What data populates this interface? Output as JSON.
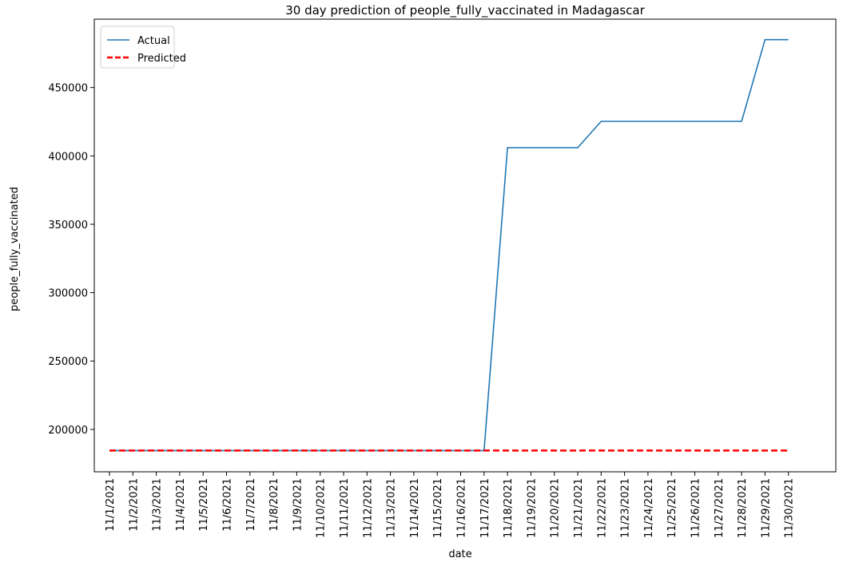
{
  "chart_data": {
    "type": "line",
    "title": "30 day prediction of people_fully_vaccinated in Madagascar",
    "xlabel": "date",
    "ylabel": "people_fully_vaccinated",
    "categories": [
      "11/1/2021",
      "11/2/2021",
      "11/3/2021",
      "11/4/2021",
      "11/5/2021",
      "11/6/2021",
      "11/7/2021",
      "11/8/2021",
      "11/9/2021",
      "11/10/2021",
      "11/11/2021",
      "11/12/2021",
      "11/13/2021",
      "11/14/2021",
      "11/15/2021",
      "11/16/2021",
      "11/17/2021",
      "11/18/2021",
      "11/19/2021",
      "11/20/2021",
      "11/21/2021",
      "11/22/2021",
      "11/23/2021",
      "11/24/2021",
      "11/25/2021",
      "11/26/2021",
      "11/27/2021",
      "11/28/2021",
      "11/29/2021",
      "11/30/2021"
    ],
    "series": [
      {
        "name": "Actual",
        "color": "#1f77b4",
        "style": "solid",
        "values": [
          184500,
          184500,
          184500,
          184500,
          184500,
          184500,
          184500,
          184500,
          184500,
          184500,
          184500,
          184500,
          184500,
          184500,
          184500,
          184500,
          184500,
          406000,
          406000,
          406000,
          406000,
          425300,
          425300,
          425300,
          425300,
          425300,
          425300,
          425300,
          485000,
          485000
        ]
      },
      {
        "name": "Predicted",
        "color": "#ff0000",
        "style": "dashed",
        "values": [
          184500,
          184500,
          184500,
          184500,
          184500,
          184500,
          184500,
          184500,
          184500,
          184500,
          184500,
          184500,
          184500,
          184500,
          184500,
          184500,
          184500,
          184500,
          184500,
          184500,
          184500,
          184500,
          184500,
          184500,
          184500,
          184500,
          184500,
          184500,
          184500,
          184500
        ]
      }
    ],
    "yticks": [
      200000,
      250000,
      300000,
      350000,
      400000,
      450000
    ],
    "ylim": [
      169000,
      500000
    ],
    "grid": false,
    "legend_position": "top-left"
  }
}
